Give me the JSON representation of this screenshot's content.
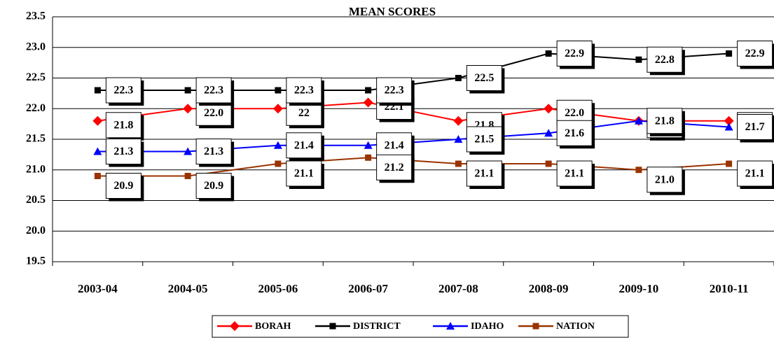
{
  "chart_data": {
    "type": "line",
    "title": "MEAN SCORES",
    "categories": [
      "2003-04",
      "2004-05",
      "2005-06",
      "2006-07",
      "2007-08",
      "2008-09",
      "2009-10",
      "2010-11"
    ],
    "series": [
      {
        "name": "BORAH",
        "color": "#ff0000",
        "marker": "diamond",
        "values": [
          21.8,
          22.0,
          22.0,
          22.1,
          21.8,
          22.0,
          21.8,
          21.8
        ],
        "value_labels": [
          "21.8",
          "22.0",
          "22",
          "22.1",
          "21.8",
          "22.0",
          "21.8",
          "21.8"
        ]
      },
      {
        "name": "DISTRICT",
        "color": "#000000",
        "marker": "square",
        "values": [
          22.3,
          22.3,
          22.3,
          22.3,
          22.5,
          22.9,
          22.8,
          22.9
        ],
        "value_labels": [
          "22.3",
          "22.3",
          "22.3",
          "22.3",
          "22.5",
          "22.9",
          "22.8",
          "22.9"
        ]
      },
      {
        "name": "IDAHO",
        "color": "#0000ff",
        "marker": "triangle",
        "values": [
          21.3,
          21.3,
          21.4,
          21.4,
          21.5,
          21.6,
          21.8,
          21.7
        ],
        "value_labels": [
          "21.3",
          "21.3",
          "21.4",
          "21.4",
          "21.5",
          "21.6",
          "21.8",
          "21.7"
        ]
      },
      {
        "name": "NATION",
        "color": "#993300",
        "marker": "square",
        "values": [
          20.9,
          20.9,
          21.1,
          21.2,
          21.1,
          21.1,
          21.0,
          21.1
        ],
        "value_labels": [
          "20.9",
          "20.9",
          "21.1",
          "21.2",
          "21.1",
          "21.1",
          "21.0",
          "21.1"
        ]
      }
    ],
    "ylim": [
      19.5,
      23.5
    ],
    "yticks": [
      {
        "value": 19.5,
        "label": "19.5"
      },
      {
        "value": 20,
        "label": "20.0"
      },
      {
        "value": 20.5,
        "label": "20.5"
      },
      {
        "value": 21,
        "label": "21.0"
      },
      {
        "value": 21.5,
        "label": "21.5"
      },
      {
        "value": 22,
        "label": "22.0"
      },
      {
        "value": 22.5,
        "label": "22.5"
      },
      {
        "value": 23,
        "label": "23.0"
      },
      {
        "value": 23.5,
        "label": "23.5"
      }
    ],
    "grid": true,
    "legend": "bottom"
  }
}
